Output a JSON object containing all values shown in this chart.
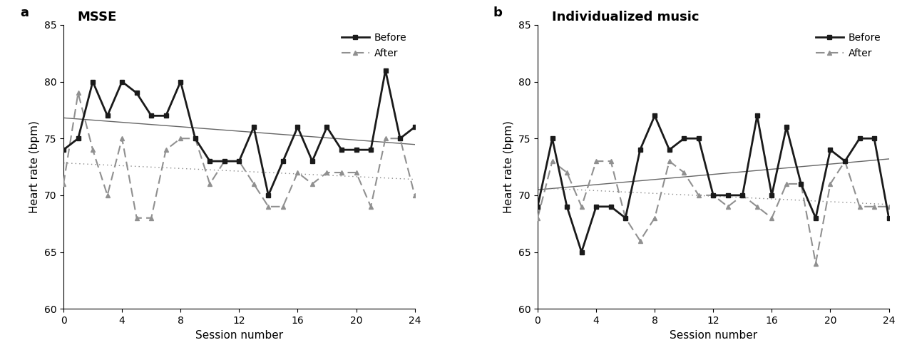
{
  "panel_a": {
    "title": "MSSE",
    "label": "a",
    "before": [
      74,
      75,
      80,
      77,
      80,
      79,
      77,
      77,
      80,
      75,
      73,
      73,
      73,
      76,
      70,
      73,
      76,
      73,
      76,
      74,
      74,
      74,
      81,
      75,
      76
    ],
    "after": [
      71,
      79,
      74,
      70,
      75,
      68,
      68,
      74,
      75,
      75,
      71,
      73,
      73,
      71,
      69,
      69,
      72,
      71,
      72,
      72,
      72,
      69,
      75,
      75,
      70
    ]
  },
  "panel_b": {
    "title": "Individualized music",
    "label": "b",
    "before": [
      69,
      75,
      69,
      65,
      69,
      69,
      68,
      74,
      77,
      74,
      75,
      75,
      70,
      70,
      70,
      77,
      70,
      76,
      71,
      68,
      74,
      73,
      75,
      75,
      68
    ],
    "after": [
      68,
      73,
      72,
      69,
      73,
      73,
      68,
      66,
      68,
      73,
      72,
      70,
      70,
      69,
      70,
      69,
      68,
      71,
      71,
      64,
      71,
      73,
      69,
      69,
      69
    ]
  },
  "sessions": [
    0,
    1,
    2,
    3,
    4,
    5,
    6,
    7,
    8,
    9,
    10,
    11,
    12,
    13,
    14,
    15,
    16,
    17,
    18,
    19,
    20,
    21,
    22,
    23,
    24
  ],
  "ylim": [
    60,
    85
  ],
  "yticks": [
    60,
    65,
    70,
    75,
    80,
    85
  ],
  "xlim": [
    0,
    24
  ],
  "xticks": [
    0,
    4,
    8,
    12,
    16,
    20,
    24
  ],
  "xlabel": "Session number",
  "ylabel": "Heart rate (bpm)",
  "before_color": "#1a1a1a",
  "after_color": "#909090",
  "trend_before_color": "#666666",
  "trend_after_color": "#888888",
  "bg_color": "#ffffff",
  "title_fontsize": 13,
  "label_fontsize": 13,
  "tick_fontsize": 10,
  "axis_label_fontsize": 11,
  "legend_fontsize": 10
}
